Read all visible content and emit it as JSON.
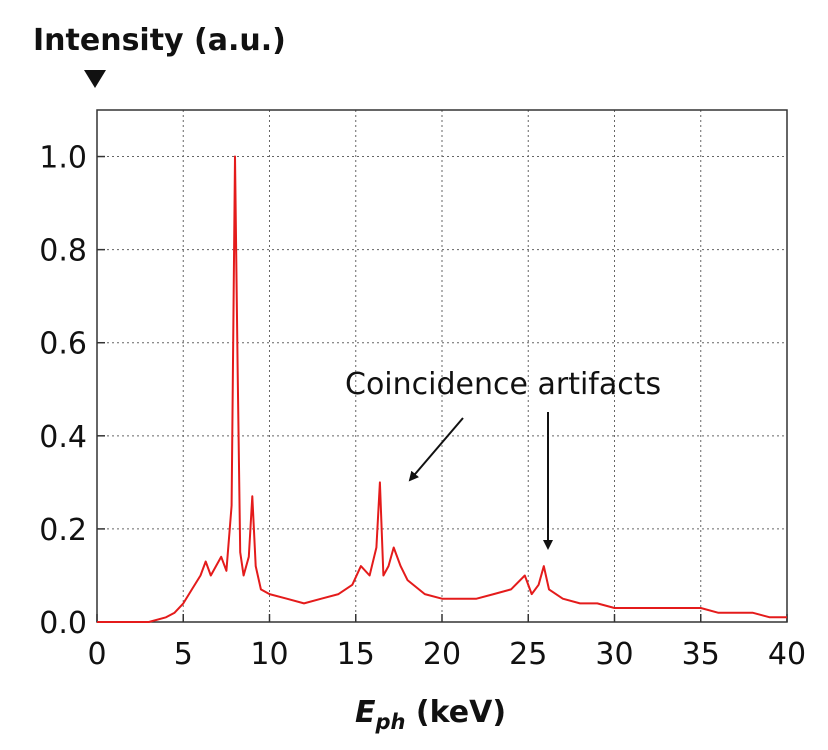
{
  "chart_data": {
    "type": "line",
    "ylabel": "Intensity (a.u.)",
    "xlabel_symbol": "E",
    "xlabel_subscript": "ph",
    "xlabel_unit": " (keV)",
    "xlim": [
      0,
      40
    ],
    "ylim": [
      0,
      1.1
    ],
    "x_ticks": [
      "0",
      "5",
      "10",
      "15",
      "20",
      "25",
      "30",
      "35",
      "40"
    ],
    "y_ticks": [
      "0.0",
      "0.2",
      "0.4",
      "0.6",
      "0.8",
      "1.0"
    ],
    "grid": true,
    "line_color": "#e41b1b",
    "series": [
      {
        "x": [
          0,
          1,
          2,
          3,
          4,
          4.5,
          5,
          5.5,
          6,
          6.3,
          6.6,
          6.9,
          7.2,
          7.5,
          7.8,
          8.0,
          8.15,
          8.3,
          8.5,
          8.8,
          9.0,
          9.2,
          9.5,
          10,
          11,
          12,
          13,
          14,
          14.8,
          15.3,
          15.8,
          16.2,
          16.4,
          16.6,
          16.9,
          17.2,
          17.6,
          18,
          19,
          20,
          21,
          22,
          23,
          24,
          24.8,
          25.2,
          25.6,
          25.9,
          26.2,
          27,
          28,
          29,
          30,
          31,
          32,
          33,
          34,
          35,
          36,
          37,
          38,
          39,
          40
        ],
        "y": [
          0.0,
          0.0,
          0.0,
          0.0,
          0.01,
          0.02,
          0.04,
          0.07,
          0.1,
          0.13,
          0.1,
          0.12,
          0.14,
          0.11,
          0.25,
          1.0,
          0.55,
          0.15,
          0.1,
          0.14,
          0.27,
          0.12,
          0.07,
          0.06,
          0.05,
          0.04,
          0.05,
          0.06,
          0.08,
          0.12,
          0.1,
          0.16,
          0.3,
          0.1,
          0.12,
          0.16,
          0.12,
          0.09,
          0.06,
          0.05,
          0.05,
          0.05,
          0.06,
          0.07,
          0.1,
          0.06,
          0.08,
          0.12,
          0.07,
          0.05,
          0.04,
          0.04,
          0.03,
          0.03,
          0.03,
          0.03,
          0.03,
          0.03,
          0.02,
          0.02,
          0.02,
          0.01,
          0.01
        ]
      }
    ],
    "annotation": "Coincidence artifacts"
  }
}
